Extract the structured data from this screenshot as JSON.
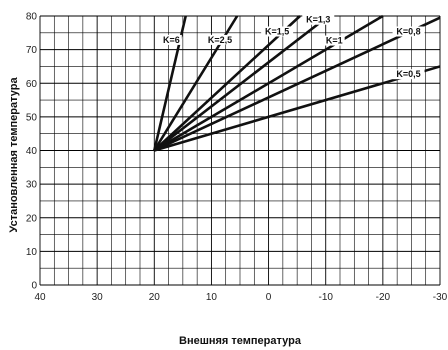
{
  "chart_data": {
    "type": "line",
    "xlabel": "Внешняя температура",
    "ylabel": "Установленная температура",
    "xlim": [
      40,
      -30
    ],
    "ylim": [
      0,
      80
    ],
    "x_ticks": [
      40,
      30,
      20,
      10,
      0,
      -10,
      -20,
      -30
    ],
    "y_ticks": [
      0,
      10,
      20,
      30,
      40,
      50,
      60,
      70,
      80
    ],
    "x_minor_step": 2.5,
    "y_minor_step": 5,
    "grid": true,
    "series": [
      {
        "name": "K=6",
        "points": [
          [
            20,
            40
          ],
          [
            14.5,
            80
          ]
        ]
      },
      {
        "name": "K=2,5",
        "points": [
          [
            20,
            40
          ],
          [
            5.5,
            80
          ]
        ]
      },
      {
        "name": "K=1,5",
        "points": [
          [
            20,
            40
          ],
          [
            -5.5,
            80
          ]
        ]
      },
      {
        "name": "K=1,3",
        "points": [
          [
            20,
            40
          ],
          [
            -10.5,
            80
          ]
        ]
      },
      {
        "name": "K=1",
        "points": [
          [
            20,
            40
          ],
          [
            -20,
            80
          ]
        ]
      },
      {
        "name": "K=0,8",
        "points": [
          [
            20,
            40
          ],
          [
            -30,
            79.5
          ]
        ]
      },
      {
        "name": "K=0,5",
        "points": [
          [
            20,
            40
          ],
          [
            -30,
            65
          ]
        ]
      }
    ],
    "labels": [
      {
        "text": "K=6",
        "x": 17,
        "y": 72
      },
      {
        "text": "K=2,5",
        "x": 8.5,
        "y": 72
      },
      {
        "text": "K=1,5",
        "x": -1.5,
        "y": 74.5
      },
      {
        "text": "K=1,3",
        "x": -8.7,
        "y": 78
      },
      {
        "text": "K=1",
        "x": -11.5,
        "y": 71.8
      },
      {
        "text": "K=0,8",
        "x": -24.5,
        "y": 74.5
      },
      {
        "text": "K=0,5",
        "x": -24.5,
        "y": 61.8
      }
    ]
  }
}
